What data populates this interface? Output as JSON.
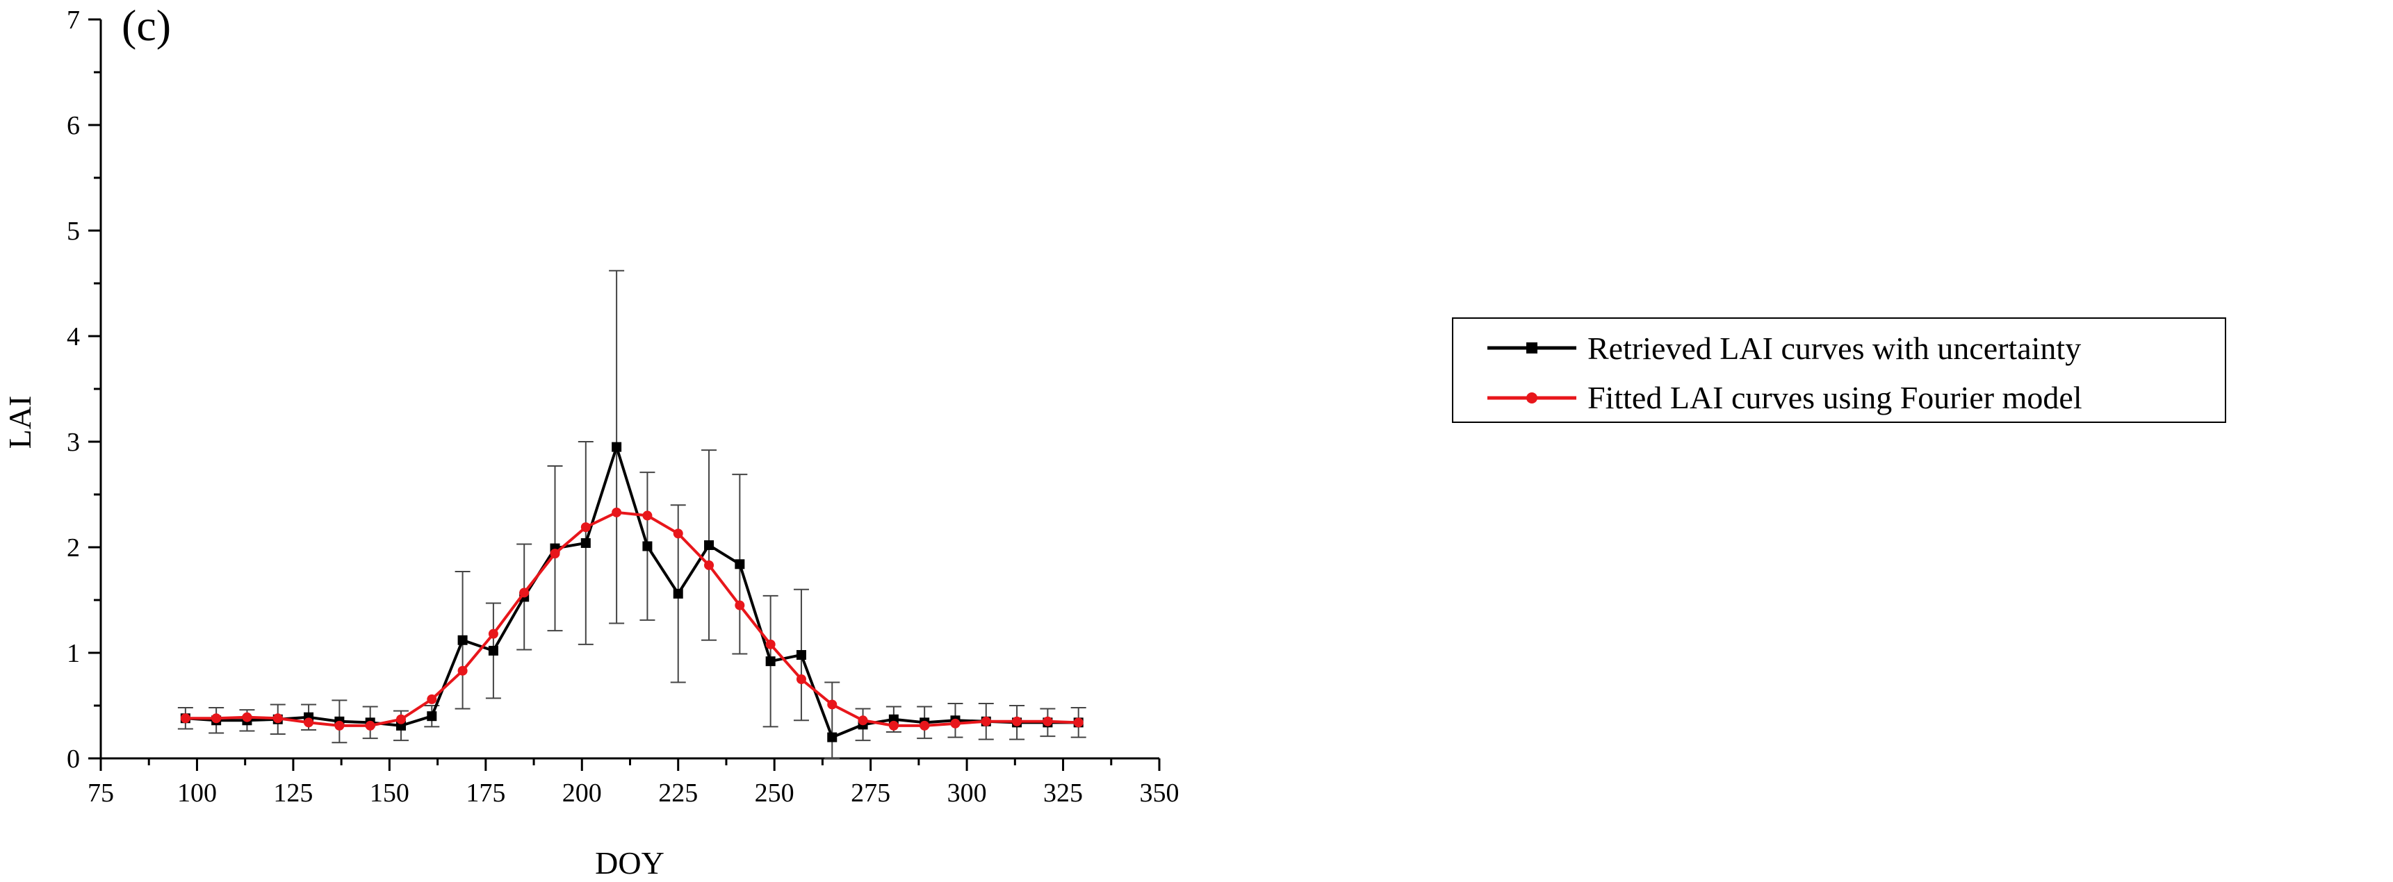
{
  "panel_label": "(c)",
  "chart_data": {
    "type": "line",
    "xlabel": "DOY",
    "ylabel": "LAI",
    "xlim": [
      75,
      350
    ],
    "ylim": [
      0,
      7
    ],
    "x_ticks": [
      75,
      100,
      125,
      150,
      175,
      200,
      225,
      250,
      275,
      300,
      325,
      350
    ],
    "y_ticks": [
      0,
      1,
      2,
      3,
      4,
      5,
      6,
      7
    ],
    "grid": false,
    "legend_position": "right",
    "x": [
      97,
      105,
      113,
      121,
      129,
      137,
      145,
      153,
      161,
      169,
      177,
      185,
      193,
      201,
      209,
      217,
      225,
      233,
      241,
      249,
      257,
      265,
      273,
      281,
      289,
      297,
      305,
      313,
      321,
      329
    ],
    "series": [
      {
        "name": "Retrieved LAI curves with uncertainty",
        "color": "#000000",
        "marker": "square",
        "values": [
          0.38,
          0.36,
          0.36,
          0.37,
          0.39,
          0.35,
          0.34,
          0.31,
          0.4,
          1.12,
          1.02,
          1.53,
          1.99,
          2.04,
          2.95,
          2.01,
          1.56,
          2.02,
          1.84,
          0.92,
          0.98,
          0.2,
          0.32,
          0.37,
          0.34,
          0.36,
          0.35,
          0.34,
          0.34,
          0.34
        ],
        "error": [
          0.1,
          0.12,
          0.1,
          0.14,
          0.12,
          0.2,
          0.15,
          0.14,
          0.1,
          0.65,
          0.45,
          0.5,
          0.78,
          0.96,
          1.67,
          0.7,
          0.84,
          0.9,
          0.85,
          0.62,
          0.62,
          0.52,
          0.15,
          0.12,
          0.15,
          0.16,
          0.17,
          0.16,
          0.13,
          0.14
        ]
      },
      {
        "name": "Fitted LAI curves using Fourier model",
        "color": "#e8161b",
        "marker": "circle",
        "values": [
          0.38,
          0.38,
          0.39,
          0.38,
          0.34,
          0.31,
          0.31,
          0.37,
          0.56,
          0.83,
          1.18,
          1.57,
          1.94,
          2.19,
          2.33,
          2.3,
          2.13,
          1.83,
          1.45,
          1.08,
          0.75,
          0.51,
          0.36,
          0.31,
          0.31,
          0.33,
          0.35,
          0.35,
          0.35,
          0.34
        ]
      }
    ]
  }
}
